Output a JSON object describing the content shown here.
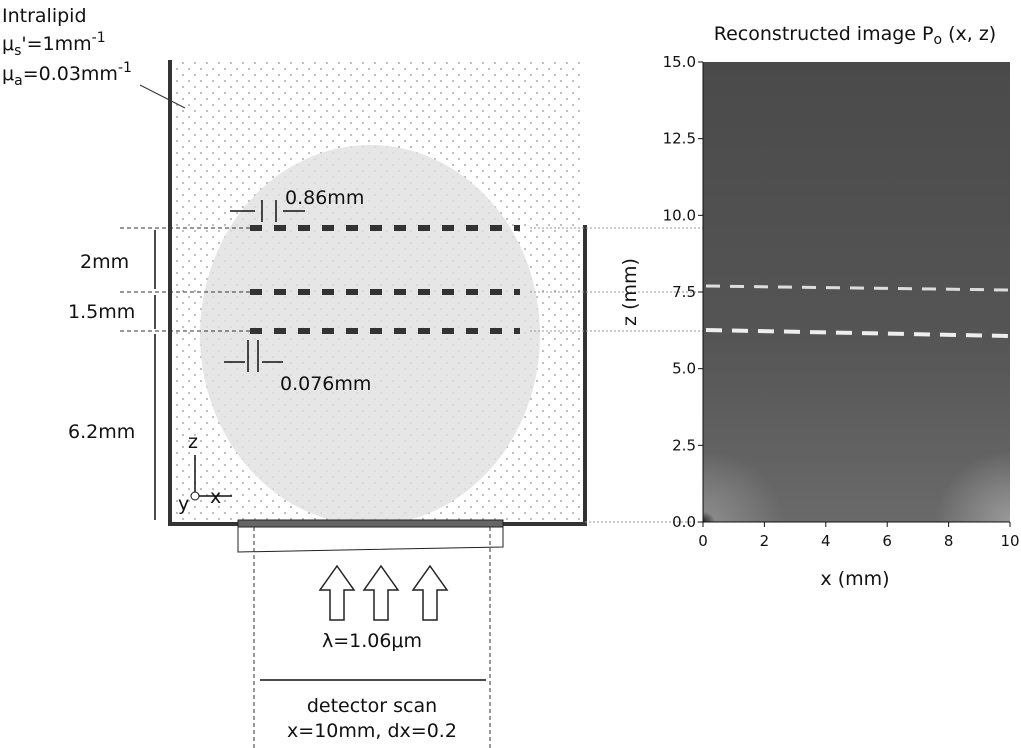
{
  "diagram": {
    "medium": {
      "name": "Intralipid",
      "mus": {
        "sym": "μ",
        "sub": "s",
        "eq": "'=1mm",
        "sup": "-1"
      },
      "mua": {
        "sym": "μ",
        "sub": "a",
        "eq": "=0.03mm",
        "sup": "-1"
      }
    },
    "dims": {
      "gap": "0.86mm",
      "width": "0.076mm",
      "d1": "2mm",
      "d2": "1.5mm",
      "d3": "6.2mm"
    },
    "axes": {
      "z": "z",
      "y": "y",
      "x": "x"
    },
    "laser": "λ=1.06μm",
    "scan": {
      "title": "detector scan",
      "params": "x=10mm, dx=0.2"
    }
  },
  "image": {
    "title": {
      "main": "Reconstructed image P",
      "sub": "o",
      "rest": " (x, z)"
    },
    "xlabel": "x (mm)",
    "ylabel": "z (mm)",
    "xlim": [
      0,
      10
    ],
    "ylim": [
      0,
      15
    ],
    "xticks": [
      0,
      2,
      4,
      6,
      8,
      10
    ],
    "yticks": [
      {
        "value": 0,
        "label": "0.0"
      },
      2.5,
      {
        "value": 5,
        "label": "5.0"
      },
      7.5,
      {
        "value": 10,
        "label": "10.0"
      },
      12.5,
      {
        "value": 15,
        "label": "15.0"
      }
    ]
  }
}
